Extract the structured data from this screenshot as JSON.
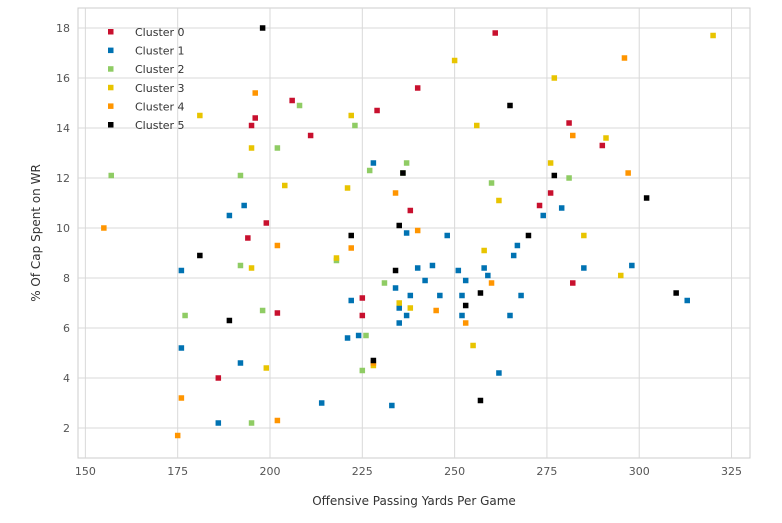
{
  "chart_data": {
    "type": "scatter",
    "title": "",
    "xlabel": "Offensive Passing Yards Per Game",
    "ylabel": "% Of Cap Spent on WR",
    "xlim": [
      148,
      330
    ],
    "ylim": [
      0.8,
      18.8
    ],
    "xticks": [
      150,
      175,
      200,
      225,
      250,
      275,
      300,
      325
    ],
    "yticks": [
      2,
      4,
      6,
      8,
      10,
      12,
      14,
      16,
      18
    ],
    "grid": true,
    "legend_position": "top-left",
    "marker": "square",
    "series": [
      {
        "name": "Cluster 0",
        "color": "#c8102e",
        "points": [
          [
            261,
            17.8
          ],
          [
            240,
            15.6
          ],
          [
            206,
            15.1
          ],
          [
            196,
            14.4
          ],
          [
            195,
            14.1
          ],
          [
            211,
            13.7
          ],
          [
            229,
            14.7
          ],
          [
            281,
            14.2
          ],
          [
            290,
            13.3
          ],
          [
            238,
            10.7
          ],
          [
            273,
            10.9
          ],
          [
            276,
            11.4
          ],
          [
            199,
            10.2
          ],
          [
            194,
            9.6
          ],
          [
            202,
            6.6
          ],
          [
            225,
            7.2
          ],
          [
            225,
            6.5
          ],
          [
            186,
            4.0
          ],
          [
            282,
            7.8
          ]
        ]
      },
      {
        "name": "Cluster 1",
        "color": "#0072b2",
        "points": [
          [
            228,
            12.6
          ],
          [
            274,
            10.5
          ],
          [
            279,
            10.8
          ],
          [
            193,
            10.9
          ],
          [
            189,
            10.5
          ],
          [
            176,
            8.3
          ],
          [
            176,
            5.2
          ],
          [
            192,
            4.6
          ],
          [
            186,
            2.2
          ],
          [
            214,
            3.0
          ],
          [
            233,
            2.9
          ],
          [
            262,
            4.2
          ],
          [
            221,
            5.6
          ],
          [
            224,
            5.7
          ],
          [
            222,
            7.1
          ],
          [
            235,
            6.2
          ],
          [
            235,
            6.8
          ],
          [
            238,
            7.3
          ],
          [
            237,
            6.5
          ],
          [
            240,
            8.4
          ],
          [
            244,
            8.5
          ],
          [
            242,
            7.9
          ],
          [
            246,
            7.3
          ],
          [
            248,
            9.7
          ],
          [
            251,
            8.3
          ],
          [
            252,
            7.3
          ],
          [
            253,
            7.9
          ],
          [
            258,
            8.4
          ],
          [
            259,
            8.1
          ],
          [
            252,
            6.5
          ],
          [
            237,
            9.8
          ],
          [
            265,
            6.5
          ],
          [
            266,
            8.9
          ],
          [
            267,
            9.3
          ],
          [
            268,
            7.3
          ],
          [
            285,
            8.4
          ],
          [
            298,
            8.5
          ],
          [
            313,
            7.1
          ],
          [
            234,
            7.6
          ]
        ]
      },
      {
        "name": "Cluster 2",
        "color": "#8fcc64",
        "points": [
          [
            157,
            12.1
          ],
          [
            192,
            12.1
          ],
          [
            202,
            13.2
          ],
          [
            208,
            14.9
          ],
          [
            223,
            14.1
          ],
          [
            227,
            12.3
          ],
          [
            236,
            12.2
          ],
          [
            237,
            12.6
          ],
          [
            260,
            11.8
          ],
          [
            281,
            12.0
          ],
          [
            192,
            8.5
          ],
          [
            198,
            6.7
          ],
          [
            218,
            8.7
          ],
          [
            231,
            7.8
          ],
          [
            226,
            5.7
          ],
          [
            225,
            4.3
          ],
          [
            177,
            6.5
          ],
          [
            195,
            2.2
          ]
        ]
      },
      {
        "name": "Cluster 3",
        "color": "#e8c400",
        "points": [
          [
            320,
            17.7
          ],
          [
            250,
            16.7
          ],
          [
            277,
            16.0
          ],
          [
            181,
            14.5
          ],
          [
            195,
            13.2
          ],
          [
            222,
            14.5
          ],
          [
            256,
            14.1
          ],
          [
            291,
            13.6
          ],
          [
            276,
            12.6
          ],
          [
            204,
            11.7
          ],
          [
            221,
            11.6
          ],
          [
            262,
            11.1
          ],
          [
            285,
            9.7
          ],
          [
            258,
            9.1
          ],
          [
            195,
            8.4
          ],
          [
            218,
            8.8
          ],
          [
            235,
            7.0
          ],
          [
            238,
            6.8
          ],
          [
            255,
            5.3
          ],
          [
            228,
            4.5
          ],
          [
            199,
            4.4
          ],
          [
            295,
            8.1
          ]
        ]
      },
      {
        "name": "Cluster 4",
        "color": "#ff9500",
        "points": [
          [
            296,
            16.8
          ],
          [
            196,
            15.4
          ],
          [
            282,
            13.7
          ],
          [
            297,
            12.2
          ],
          [
            234,
            11.4
          ],
          [
            155,
            10.0
          ],
          [
            202,
            9.3
          ],
          [
            222,
            9.2
          ],
          [
            240,
            9.9
          ],
          [
            260,
            7.8
          ],
          [
            245,
            6.7
          ],
          [
            253,
            6.2
          ],
          [
            228,
            4.6
          ],
          [
            176,
            3.2
          ],
          [
            202,
            2.3
          ],
          [
            175,
            1.7
          ]
        ]
      },
      {
        "name": "Cluster 5",
        "color": "#000000",
        "points": [
          [
            198,
            18.0
          ],
          [
            265,
            14.9
          ],
          [
            236,
            12.2
          ],
          [
            277,
            12.1
          ],
          [
            302,
            11.2
          ],
          [
            235,
            10.1
          ],
          [
            222,
            9.7
          ],
          [
            270,
            9.7
          ],
          [
            181,
            8.9
          ],
          [
            234,
            8.3
          ],
          [
            257,
            7.4
          ],
          [
            253,
            6.9
          ],
          [
            310,
            7.4
          ],
          [
            189,
            6.3
          ],
          [
            228,
            4.7
          ],
          [
            257,
            3.1
          ]
        ]
      }
    ]
  }
}
